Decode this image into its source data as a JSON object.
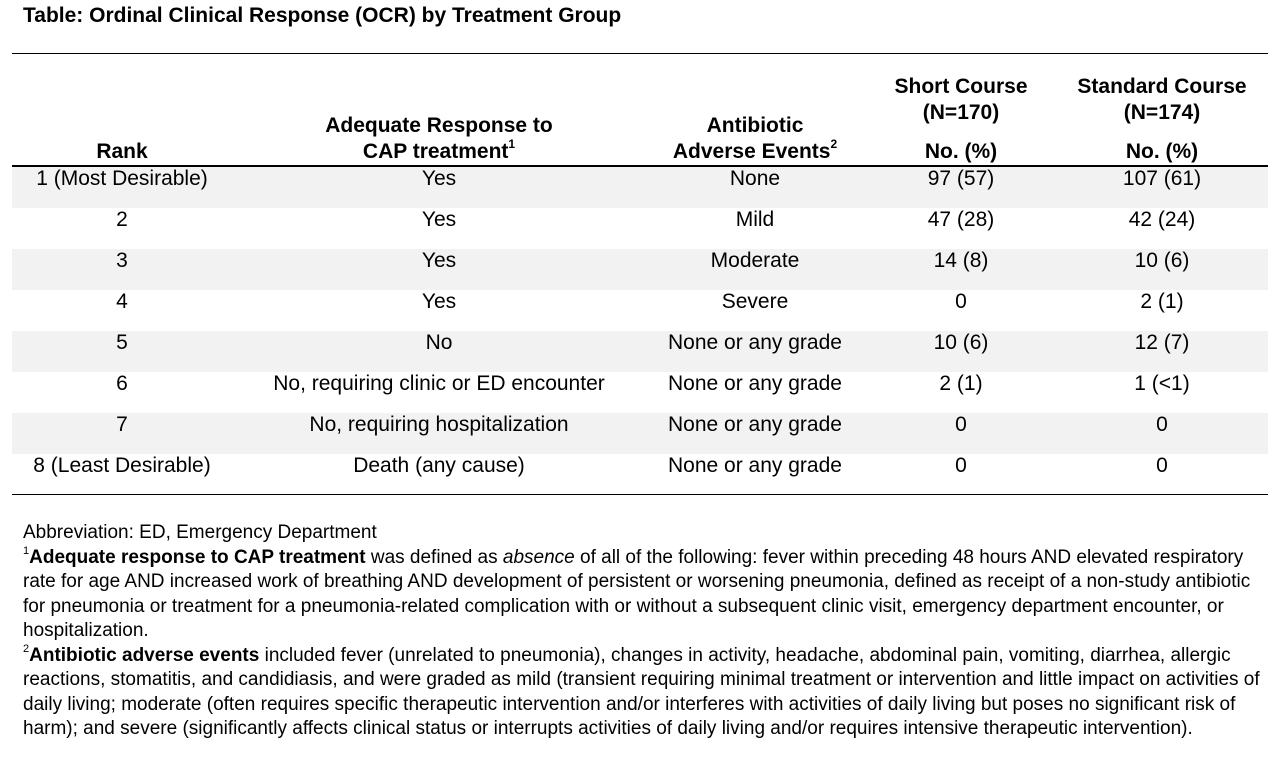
{
  "title": "Table: Ordinal Clinical Response (OCR) by Treatment Group",
  "headers": {
    "rank": "Rank",
    "response_line1": "Adequate Response to",
    "response_line2": "CAP treatment",
    "response_sup": "1",
    "ae_line1": "Antibiotic",
    "ae_line2": "Adverse Events",
    "ae_sup": "2",
    "short_line1": "Short Course",
    "short_line2": "(N=170)",
    "short_line3": "No. (%)",
    "std_line1": "Standard Course",
    "std_line2": "(N=174)",
    "std_line3": "No. (%)"
  },
  "rows": [
    {
      "rank": "1 (Most Desirable)",
      "response": "Yes",
      "ae": "None",
      "short": "97 (57)",
      "standard": "107 (61)"
    },
    {
      "rank": "2",
      "response": "Yes",
      "ae": "Mild",
      "short": "47 (28)",
      "standard": "42 (24)"
    },
    {
      "rank": "3",
      "response": "Yes",
      "ae": "Moderate",
      "short": "14 (8)",
      "standard": "10 (6)"
    },
    {
      "rank": "4",
      "response": "Yes",
      "ae": "Severe",
      "short": "0",
      "standard": "2 (1)"
    },
    {
      "rank": "5",
      "response": "No",
      "ae": "None or any grade",
      "short": "10 (6)",
      "standard": "12 (7)"
    },
    {
      "rank": "6",
      "response": "No, requiring clinic or ED encounter",
      "ae": "None or any grade",
      "short": "2 (1)",
      "standard": "1 (<1)"
    },
    {
      "rank": "7",
      "response": "No, requiring hospitalization",
      "ae": "None or any grade",
      "short": "0",
      "standard": "0"
    },
    {
      "rank": "8 (Least Desirable)",
      "response": "Death (any cause)",
      "ae": "None or any grade",
      "short": "0",
      "standard": "0"
    }
  ],
  "footnotes": {
    "abbreviation": "Abbreviation: ED, Emergency Department",
    "fn1_marker": "1",
    "fn1_bold": "Adequate response to CAP treatment",
    "fn1_pre": " was defined as ",
    "fn1_italic": "absence",
    "fn1_rest": " of all of the following: fever within preceding 48 hours AND elevated respiratory rate for age AND increased work of breathing AND development of persistent or worsening pneumonia, defined as receipt of a non-study antibiotic for pneumonia or treatment for a pneumonia-related complication with or without a subsequent clinic visit, emergency department encounter, or hospitalization.",
    "fn2_marker": "2",
    "fn2_bold": "Antibiotic adverse events",
    "fn2_rest": " included fever (unrelated to pneumonia), changes in activity, headache, abdominal pain, vomiting, diarrhea, allergic reactions, stomatitis, and candidiasis, and were graded as mild (transient requiring minimal treatment or intervention and little impact on activities of daily living; moderate (often requires specific therapeutic intervention and/or interferes with activities of daily living but poses no significant risk of harm); and severe (significantly affects clinical status or interrupts activities of daily living and/or requires intensive therapeutic intervention)."
  }
}
